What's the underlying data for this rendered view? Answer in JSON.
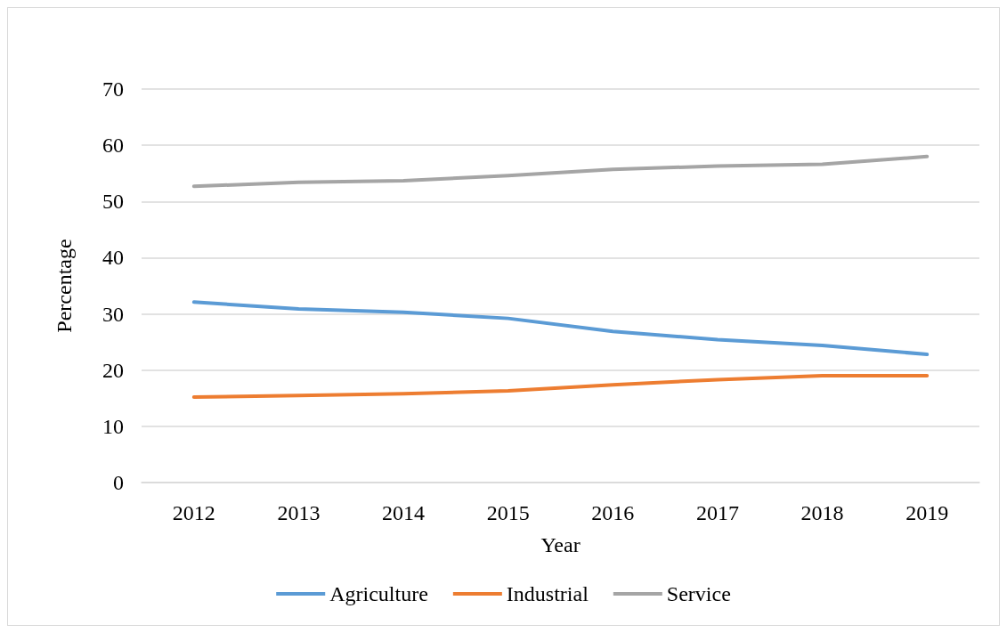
{
  "chart_data": {
    "type": "line",
    "xlabel": "Year",
    "ylabel": "Percentage",
    "categories": [
      "2012",
      "2013",
      "2014",
      "2015",
      "2016",
      "2017",
      "2018",
      "2019"
    ],
    "series": [
      {
        "name": "Agriculture",
        "color": "#5b9bd5",
        "values": [
          32.1,
          30.9,
          30.3,
          29.2,
          26.9,
          25.4,
          24.4,
          22.8
        ]
      },
      {
        "name": "Industrial",
        "color": "#ed7d31",
        "values": [
          15.2,
          15.5,
          15.8,
          16.3,
          17.4,
          18.3,
          19.0,
          19.0
        ]
      },
      {
        "name": "Service",
        "color": "#a5a5a5",
        "values": [
          52.7,
          53.4,
          53.7,
          54.6,
          55.7,
          56.3,
          56.6,
          58.0
        ]
      }
    ],
    "ylim": [
      0,
      70
    ],
    "yticks": [
      0,
      10,
      20,
      30,
      40,
      50,
      60,
      70
    ],
    "grid": "y",
    "legend": "bottom",
    "marker": "none",
    "line_style": "solid"
  }
}
